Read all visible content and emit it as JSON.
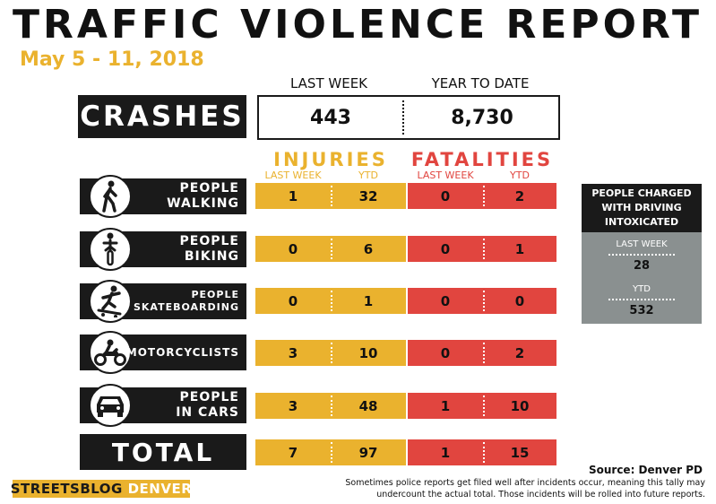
{
  "title": "TRAFFIC VIOLENCE REPORT",
  "date_range": "May 5 - 11, 2018",
  "columns": {
    "last_week": "LAST WEEK",
    "year_to_date": "YEAR TO DATE"
  },
  "crashes": {
    "label": "CRASHES",
    "last_week": "443",
    "year_to_date": "8,730"
  },
  "groups": {
    "injuries": {
      "title": "INJURIES",
      "sub_last_week": "LAST WEEK",
      "sub_ytd": "YTD",
      "color": "#eab22e"
    },
    "fatalities": {
      "title": "FATALITIES",
      "sub_last_week": "LAST WEEK",
      "sub_ytd": "YTD",
      "color": "#e1453f"
    }
  },
  "rows": [
    {
      "line1": "PEOPLE",
      "line2": "WALKING",
      "icon": "pedestrian-icon",
      "inj_lw": "1",
      "inj_ytd": "32",
      "fat_lw": "0",
      "fat_ytd": "2"
    },
    {
      "line1": "PEOPLE",
      "line2": "BIKING",
      "icon": "bicycle-icon",
      "inj_lw": "0",
      "inj_ytd": "6",
      "fat_lw": "0",
      "fat_ytd": "1"
    },
    {
      "line1": "PEOPLE",
      "line2": "SKATEBOARDING",
      "icon": "skateboard-icon",
      "inj_lw": "0",
      "inj_ytd": "1",
      "fat_lw": "0",
      "fat_ytd": "0"
    },
    {
      "line1": "MOTORCYCLISTS",
      "line2": "",
      "icon": "motorcycle-icon",
      "inj_lw": "3",
      "inj_ytd": "10",
      "fat_lw": "0",
      "fat_ytd": "2"
    },
    {
      "line1": "PEOPLE",
      "line2": "IN CARS",
      "icon": "car-icon",
      "inj_lw": "3",
      "inj_ytd": "48",
      "fat_lw": "1",
      "fat_ytd": "10"
    }
  ],
  "total": {
    "label": "TOTAL",
    "inj_lw": "7",
    "inj_ytd": "97",
    "fat_lw": "1",
    "fat_ytd": "15"
  },
  "intoxicated": {
    "line1": "PEOPLE CHARGED",
    "line2": "WITH DRIVING",
    "line3": "INTOXICATED",
    "last_week_label": "LAST WEEK",
    "last_week": "28",
    "ytd_label": "YTD",
    "ytd": "532"
  },
  "source": "Source: Denver PD",
  "note_line1": "Sometimes police reports get filed well after incidents occur, meaning this tally may",
  "note_line2": "undercount the actual total. Those incidents will be rolled into future reports.",
  "logo": {
    "part1": "STREETSBLOG",
    "part2": "DENVER"
  }
}
